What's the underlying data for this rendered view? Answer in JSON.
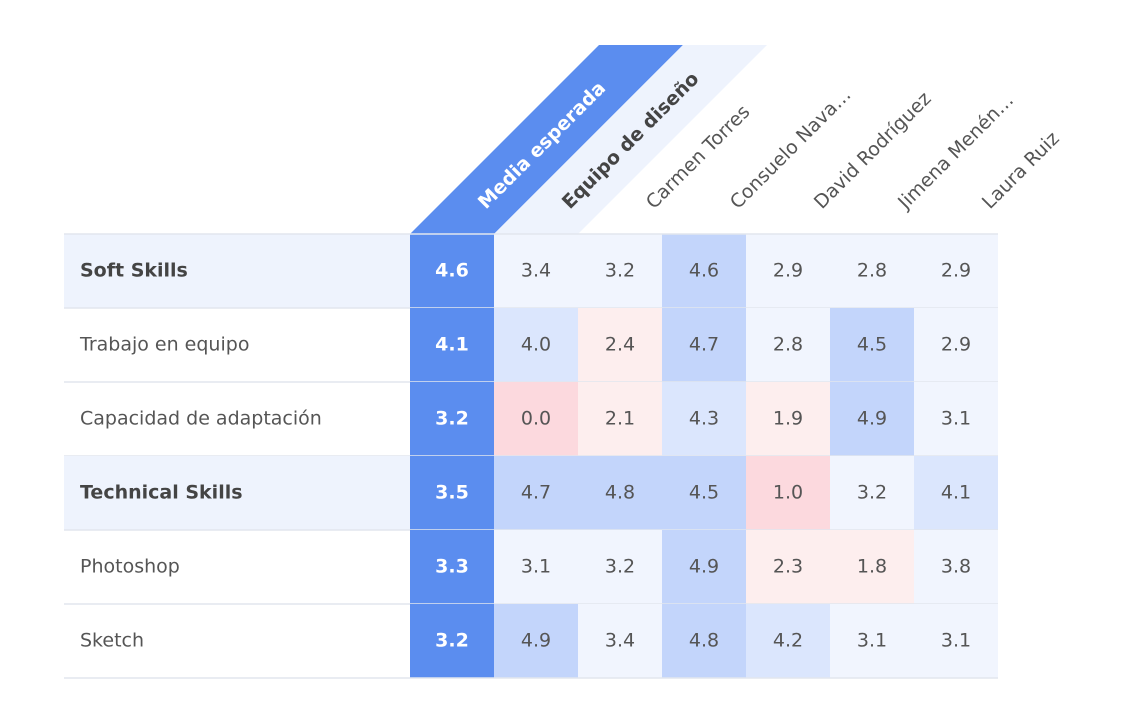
{
  "table": {
    "columns": [
      "Media esperada",
      "Equipo de diseño",
      "Carmen Torres",
      "Consuelo Nava…",
      "David Rodríguez",
      "Jimena Menén…",
      "Laura Ruiz"
    ],
    "rows": [
      {
        "label": "Soft Skills",
        "group": true,
        "cells": [
          "4.6",
          "3.4",
          "3.2",
          "4.6",
          "2.9",
          "2.8",
          "2.9"
        ]
      },
      {
        "label": "Trabajo en equipo",
        "group": false,
        "cells": [
          "4.1",
          "4.0",
          "2.4",
          "4.7",
          "2.8",
          "4.5",
          "2.9"
        ]
      },
      {
        "label": "Capacidad de adaptación",
        "group": false,
        "cells": [
          "3.2",
          "0.0",
          "2.1",
          "4.3",
          "1.9",
          "4.9",
          "3.1"
        ]
      },
      {
        "label": "Technical Skills",
        "group": true,
        "cells": [
          "3.5",
          "4.7",
          "4.8",
          "4.5",
          "1.0",
          "3.2",
          "4.1"
        ]
      },
      {
        "label": "Photoshop",
        "group": false,
        "cells": [
          "3.3",
          "3.1",
          "3.2",
          "4.9",
          "2.3",
          "1.8",
          "3.8"
        ]
      },
      {
        "label": "Sketch",
        "group": false,
        "cells": [
          "3.2",
          "4.9",
          "3.4",
          "4.8",
          "4.2",
          "3.1",
          "3.1"
        ]
      }
    ]
  }
}
